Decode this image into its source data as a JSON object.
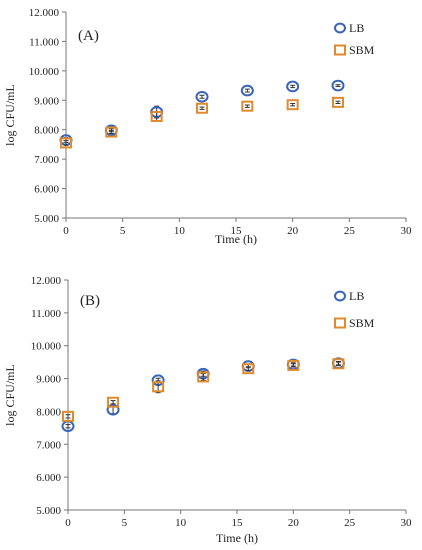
{
  "chart_data": [
    {
      "type": "scatter",
      "panel_label": "(A)",
      "xlabel": "Time (h)",
      "ylabel": "log CFU/mL",
      "xlim": [
        0,
        30
      ],
      "ylim": [
        5.0,
        12.0
      ],
      "x_ticks": [
        "0",
        "5",
        "10",
        "15",
        "20",
        "25",
        "30"
      ],
      "y_ticks": [
        "5.000",
        "6.000",
        "7.000",
        "8.000",
        "9.000",
        "10.000",
        "11.000",
        "12.000"
      ],
      "legend": "top-right",
      "grid": false,
      "series": [
        {
          "name": "LB",
          "marker": "circle",
          "color": "#3a64b8",
          "x": [
            0,
            4,
            8,
            12,
            16,
            20,
            24
          ],
          "y": [
            7.65,
            7.98,
            8.6,
            9.12,
            9.33,
            9.47,
            9.5
          ],
          "err": [
            0.08,
            0.05,
            0.2,
            0.05,
            0.05,
            0.04,
            0.03
          ]
        },
        {
          "name": "SBM",
          "marker": "square",
          "color": "#e08a2e",
          "x": [
            0,
            4,
            8,
            12,
            16,
            20,
            24
          ],
          "y": [
            7.55,
            7.92,
            8.45,
            8.73,
            8.8,
            8.85,
            8.93
          ],
          "err": [
            0.08,
            0.05,
            0.15,
            0.04,
            0.04,
            0.04,
            0.04
          ]
        }
      ]
    },
    {
      "type": "scatter",
      "panel_label": "(B)",
      "xlabel": "Time (h)",
      "ylabel": "log CFU/mL",
      "xlim": [
        0,
        30
      ],
      "ylim": [
        5.0,
        12.0
      ],
      "x_ticks": [
        "0",
        "5",
        "10",
        "15",
        "20",
        "25",
        "30"
      ],
      "y_ticks": [
        "5.000",
        "6.000",
        "7.000",
        "8.000",
        "9.000",
        "10.000",
        "11.000",
        "12.000"
      ],
      "legend": "top-right",
      "grid": false,
      "series": [
        {
          "name": "LB",
          "marker": "circle",
          "color": "#3a64b8",
          "x": [
            0,
            4,
            8,
            12,
            16,
            20,
            24
          ],
          "y": [
            7.55,
            8.05,
            8.95,
            9.15,
            9.38,
            9.43,
            9.47
          ],
          "err": [
            0.05,
            0.12,
            0.06,
            0.08,
            0.05,
            0.05,
            0.05
          ]
        },
        {
          "name": "SBM",
          "marker": "square",
          "color": "#e08a2e",
          "x": [
            0,
            4,
            8,
            12,
            16,
            20,
            24
          ],
          "y": [
            7.85,
            8.28,
            8.75,
            9.05,
            9.3,
            9.4,
            9.45
          ],
          "err": [
            0.05,
            0.05,
            0.18,
            0.1,
            0.06,
            0.05,
            0.05
          ]
        }
      ]
    }
  ]
}
